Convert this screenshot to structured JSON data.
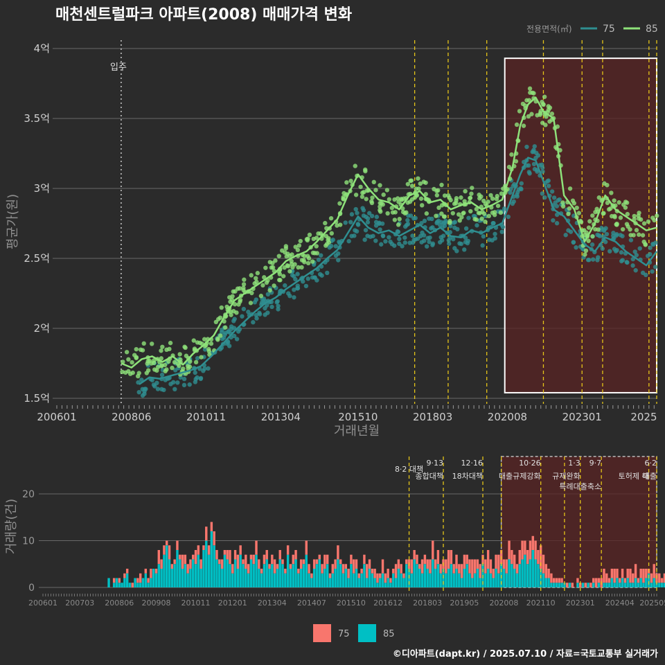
{
  "title": "매천센트럴파크 아파트(2008) 매매가격 변화",
  "caption": "©디아파트(dapt.kr) / 2025.07.10 / 자료=국토교통부 실거래가",
  "colors": {
    "bg": "#2b2b2b",
    "s75": "#2f8f91",
    "s85": "#8ee27a",
    "bar75": "#f8766d",
    "bar85": "#00bfc4",
    "policy": "#e6c619",
    "highlight": "#5a2424"
  },
  "price_chart": {
    "legend_title": "전용면적(㎡)",
    "ylabel": "평균가(원)",
    "xlabel": "거래년월",
    "y_ticks": [
      "1.5억",
      "2억",
      "2.5억",
      "3억",
      "3.5억",
      "4억"
    ],
    "y_tick_values": [
      1.5,
      2.0,
      2.5,
      3.0,
      3.5,
      4.0
    ],
    "x_ticks": [
      "200601",
      "200806",
      "201011",
      "201304",
      "201510",
      "201803",
      "202008",
      "202301",
      "2025"
    ],
    "ylim": [
      1.5,
      4.0
    ],
    "xlim": [
      "2006-01",
      "2025-06"
    ],
    "move_in_label": "입주",
    "move_in": "2008-02",
    "policy_lines": [
      "2017-08",
      "2018-09",
      "2019-12",
      "2021-10",
      "2023-01",
      "2023-09",
      "2025-03",
      "2025-06"
    ],
    "highlight_range": [
      "2020-07",
      "2025-06"
    ],
    "series_75": {
      "name": "75",
      "x": [
        "2008-09",
        "2009-01",
        "2009-05",
        "2009-09",
        "2010-01",
        "2010-05",
        "2010-09",
        "2011-01",
        "2011-06",
        "2011-10",
        "2012-02",
        "2012-06",
        "2012-10",
        "2013-02",
        "2013-06",
        "2013-10",
        "2014-02",
        "2014-06",
        "2014-10",
        "2015-02",
        "2015-06",
        "2015-10",
        "2016-02",
        "2016-06",
        "2016-10",
        "2017-02",
        "2017-06",
        "2017-10",
        "2018-02",
        "2018-06",
        "2018-10",
        "2019-02",
        "2019-06",
        "2019-10",
        "2020-02",
        "2020-06",
        "2020-10",
        "2021-01",
        "2021-04",
        "2021-07",
        "2021-10",
        "2022-02",
        "2022-06",
        "2022-10",
        "2023-02",
        "2023-06",
        "2023-10",
        "2024-02",
        "2024-06",
        "2024-10",
        "2025-02",
        "2025-06"
      ],
      "y": [
        1.6,
        1.65,
        1.64,
        1.66,
        1.68,
        1.7,
        1.73,
        1.8,
        1.9,
        1.98,
        2.05,
        2.12,
        2.18,
        2.22,
        2.28,
        2.33,
        2.38,
        2.43,
        2.5,
        2.56,
        2.68,
        2.8,
        2.72,
        2.68,
        2.7,
        2.66,
        2.7,
        2.74,
        2.68,
        2.72,
        2.66,
        2.65,
        2.7,
        2.68,
        2.72,
        2.75,
        2.95,
        3.1,
        3.22,
        3.2,
        3.05,
        2.85,
        2.8,
        2.7,
        2.6,
        2.55,
        2.65,
        2.62,
        2.55,
        2.5,
        2.45,
        2.55
      ]
    },
    "series_85": {
      "name": "85",
      "x": [
        "2008-02",
        "2008-06",
        "2008-10",
        "2009-02",
        "2009-06",
        "2009-10",
        "2010-02",
        "2010-06",
        "2010-10",
        "2011-02",
        "2011-06",
        "2011-10",
        "2012-02",
        "2012-06",
        "2012-10",
        "2013-02",
        "2013-06",
        "2013-10",
        "2014-02",
        "2014-06",
        "2014-10",
        "2015-02",
        "2015-06",
        "2015-10",
        "2016-02",
        "2016-06",
        "2016-10",
        "2017-02",
        "2017-06",
        "2017-10",
        "2018-02",
        "2018-06",
        "2018-10",
        "2019-02",
        "2019-06",
        "2019-10",
        "2020-02",
        "2020-06",
        "2020-10",
        "2021-01",
        "2021-04",
        "2021-07",
        "2021-10",
        "2022-02",
        "2022-06",
        "2022-10",
        "2023-02",
        "2023-06",
        "2023-10",
        "2024-02",
        "2024-06",
        "2024-10",
        "2025-02",
        "2025-06"
      ],
      "y": [
        1.75,
        1.72,
        1.78,
        1.8,
        1.76,
        1.8,
        1.74,
        1.82,
        1.88,
        1.95,
        2.08,
        2.2,
        2.25,
        2.3,
        2.35,
        2.4,
        2.48,
        2.52,
        2.55,
        2.62,
        2.7,
        2.78,
        2.95,
        3.1,
        3.0,
        2.92,
        2.9,
        2.85,
        2.95,
        2.98,
        2.9,
        2.92,
        2.85,
        2.88,
        2.9,
        2.85,
        2.88,
        2.92,
        3.15,
        3.45,
        3.6,
        3.65,
        3.55,
        3.5,
        2.95,
        2.85,
        2.62,
        2.75,
        2.95,
        2.85,
        2.8,
        2.75,
        2.7,
        2.72
      ]
    }
  },
  "volume_chart": {
    "ylabel": "거래량(건)",
    "y_ticks": [
      "0",
      "10",
      "20"
    ],
    "y_tick_values": [
      0,
      10,
      20
    ],
    "ylim": [
      0,
      24
    ],
    "x_ticks": [
      "200601",
      "200703",
      "200806",
      "200908",
      "201011",
      "201201",
      "201304",
      "201407",
      "201510",
      "201612",
      "201803",
      "201905",
      "202008",
      "202110",
      "202301",
      "202404",
      "202505"
    ],
    "highlight_range": [
      "2020-07",
      "2025-06"
    ],
    "policies": [
      {
        "date": "2017-08",
        "top": "8·2 대책",
        "bottom": ""
      },
      {
        "date": "2018-09",
        "top": "9·13",
        "bottom": "종합대책"
      },
      {
        "date": "2019-12",
        "top": "12·16",
        "bottom": "18차대책"
      },
      {
        "date": "2020-07",
        "top": "",
        "bottom": ""
      },
      {
        "date": "2021-10",
        "top": "10·26",
        "bottom": "대출규제강화"
      },
      {
        "date": "2022-07",
        "top": "",
        "bottom": ""
      },
      {
        "date": "2023-01",
        "top": "1·3",
        "bottom": "규제완화"
      },
      {
        "date": "2023-09",
        "top": "9·7",
        "bottom": "특례대출축소"
      },
      {
        "date": "2025-03",
        "top": "",
        "bottom": "토허제 해"
      },
      {
        "date": "2025-06",
        "top": "6·2",
        "bottom": "대출"
      }
    ],
    "legend": [
      "75",
      "85"
    ],
    "start": "2008-02",
    "v75": [
      0,
      0,
      1,
      0,
      1,
      0,
      1,
      1,
      0,
      1,
      0,
      1,
      2,
      0,
      1,
      1,
      2,
      0,
      1,
      3,
      2,
      2,
      1,
      3,
      1,
      1,
      2,
      1,
      3,
      2,
      2,
      2,
      1,
      3,
      2,
      2,
      1,
      3,
      2,
      2,
      3,
      2,
      1,
      2,
      1,
      2,
      3,
      2,
      2,
      3,
      2,
      1,
      3,
      2,
      1,
      2,
      3,
      2,
      1,
      2,
      2,
      1,
      2,
      3,
      1,
      2,
      1,
      1,
      2,
      1,
      2,
      2,
      1,
      2,
      1,
      3,
      2,
      1,
      2,
      1,
      1,
      2,
      3,
      2,
      1,
      2,
      2,
      3,
      1,
      2,
      1,
      2,
      2,
      3,
      2,
      1,
      1,
      2,
      3,
      2,
      1,
      2,
      2,
      1,
      3,
      2,
      2,
      1,
      1,
      3,
      2,
      2,
      1,
      1,
      2,
      3,
      2,
      2,
      1,
      3,
      2,
      2,
      3,
      4,
      2,
      3,
      2,
      2,
      3,
      4,
      3,
      2,
      3,
      2,
      3,
      3,
      2,
      3,
      4,
      3,
      2,
      3,
      2,
      3,
      4,
      3,
      2,
      3,
      4,
      3,
      2,
      3,
      4,
      3,
      3,
      2,
      3,
      4,
      3,
      3,
      4,
      3,
      4,
      3,
      5,
      4,
      3,
      2,
      2,
      1,
      1,
      1,
      1,
      0,
      1,
      0,
      1,
      0,
      1,
      1,
      0,
      1,
      0,
      1,
      1,
      2,
      1,
      2,
      3,
      2,
      1,
      2,
      3,
      2,
      1,
      2,
      1,
      2,
      3,
      2,
      3,
      1,
      2,
      3,
      2,
      1,
      2,
      3,
      2,
      2,
      1,
      2
    ],
    "v85": [
      2,
      0,
      1,
      2,
      1,
      1,
      2,
      3,
      1,
      0,
      2,
      1,
      1,
      2,
      3,
      1,
      2,
      4,
      3,
      5,
      4,
      7,
      9,
      6,
      4,
      5,
      8,
      6,
      4,
      5,
      3,
      4,
      6,
      5,
      7,
      4,
      8,
      10,
      7,
      12,
      9,
      6,
      5,
      4,
      7,
      6,
      5,
      3,
      6,
      4,
      7,
      5,
      4,
      3,
      6,
      5,
      7,
      4,
      3,
      5,
      6,
      4,
      5,
      3,
      4,
      6,
      5,
      3,
      7,
      4,
      5,
      6,
      3,
      4,
      5,
      7,
      3,
      2,
      4,
      5,
      6,
      3,
      4,
      5,
      2,
      3,
      4,
      6,
      5,
      3,
      4,
      2,
      5,
      3,
      4,
      2,
      3,
      5,
      2,
      4,
      3,
      2,
      1,
      2,
      3,
      1,
      2,
      1,
      3,
      2,
      4,
      3,
      2,
      5,
      4,
      3,
      6,
      5,
      4,
      3,
      5,
      4,
      3,
      6,
      4,
      5,
      3,
      4,
      3,
      4,
      5,
      3,
      4,
      3,
      2,
      4,
      5,
      3,
      2,
      3,
      4,
      2,
      5,
      3,
      4,
      3,
      2,
      4,
      3,
      5,
      4,
      3,
      6,
      5,
      4,
      3,
      5,
      6,
      7,
      5,
      6,
      8,
      6,
      5,
      4,
      3,
      2,
      2,
      1,
      1,
      1,
      1,
      1,
      1,
      0,
      1,
      0,
      0,
      1,
      0,
      1,
      0,
      1,
      0,
      1,
      0,
      1,
      0,
      1,
      1,
      1,
      2,
      1,
      2,
      1,
      2,
      1,
      2,
      1,
      1,
      2,
      1,
      2,
      1,
      2,
      3,
      1,
      2,
      1,
      1,
      1,
      1,
      1,
      1,
      1,
      1,
      1
    ]
  }
}
